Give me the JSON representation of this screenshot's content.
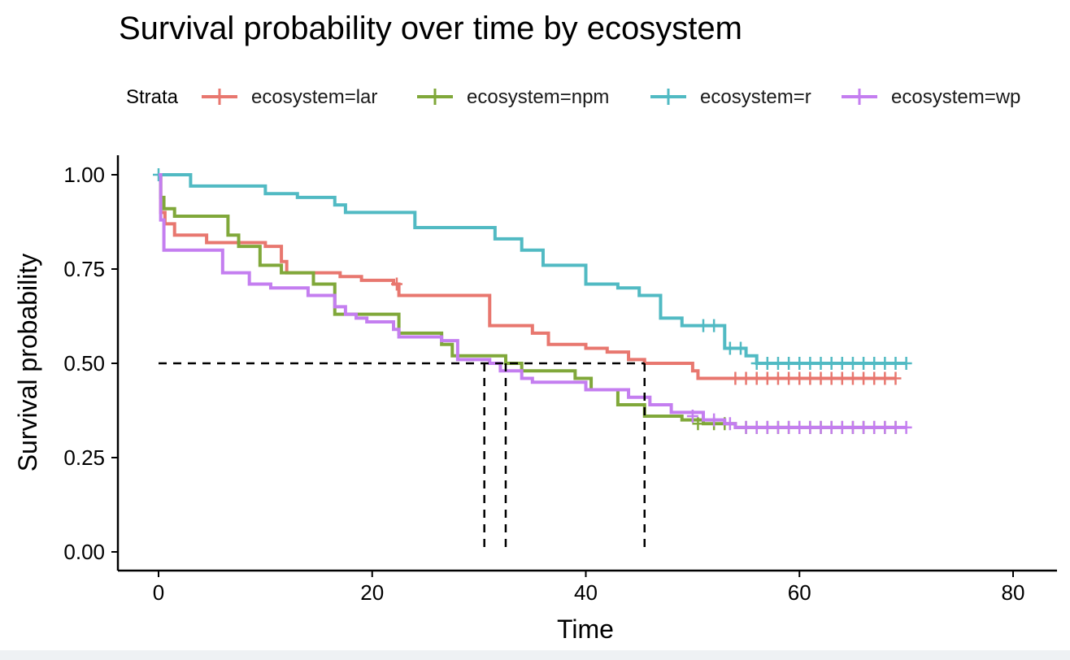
{
  "chart_data": {
    "type": "line",
    "subtype": "kaplan-meier step",
    "title": "Survival probability over time by ecosystem",
    "xlabel": "Time",
    "ylabel": "Survival probability",
    "xlim": [
      -2.5,
      83
    ],
    "ylim": [
      -0.045,
      1.045
    ],
    "xticks": [
      0,
      20,
      40,
      60,
      80
    ],
    "xtick_labels": [
      "0",
      "20",
      "40",
      "60",
      "80"
    ],
    "yticks": [
      0,
      0.25,
      0.5,
      0.75,
      1
    ],
    "ytick_labels": [
      "0.00",
      "0.25",
      "0.50",
      "0.75",
      "1.00"
    ],
    "grid": false,
    "legend": {
      "title": "Strata",
      "position": "top"
    },
    "series": [
      {
        "name": "ecosystem=lar",
        "color": "#e8776f",
        "points": [
          [
            0,
            1.0
          ],
          [
            0.2,
            0.9
          ],
          [
            0.6,
            0.87
          ],
          [
            1.5,
            0.84
          ],
          [
            4.5,
            0.82
          ],
          [
            10,
            0.81
          ],
          [
            11.5,
            0.77
          ],
          [
            12,
            0.74
          ],
          [
            17,
            0.73
          ],
          [
            19,
            0.72
          ],
          [
            22,
            0.71
          ],
          [
            22.5,
            0.68
          ],
          [
            31,
            0.68
          ],
          [
            31,
            0.6
          ],
          [
            35,
            0.58
          ],
          [
            36.5,
            0.55
          ],
          [
            40,
            0.54
          ],
          [
            42,
            0.53
          ],
          [
            44,
            0.51
          ],
          [
            45.5,
            0.51
          ],
          [
            45.5,
            0.5
          ],
          [
            50,
            0.48
          ],
          [
            50.5,
            0.46
          ],
          [
            69,
            0.46
          ]
        ],
        "censored": [
          [
            22.3,
            0.71
          ],
          [
            54,
            0.46
          ],
          [
            55,
            0.46
          ],
          [
            56,
            0.46
          ],
          [
            57,
            0.46
          ],
          [
            58,
            0.46
          ],
          [
            59,
            0.46
          ],
          [
            60,
            0.46
          ],
          [
            61,
            0.46
          ],
          [
            62,
            0.46
          ],
          [
            63,
            0.46
          ],
          [
            64,
            0.46
          ],
          [
            65,
            0.46
          ],
          [
            66,
            0.46
          ],
          [
            67,
            0.46
          ],
          [
            68,
            0.46
          ],
          [
            69,
            0.46
          ]
        ]
      },
      {
        "name": "ecosystem=npm",
        "color": "#80a83a",
        "points": [
          [
            0,
            1.0
          ],
          [
            0.2,
            0.94
          ],
          [
            0.5,
            0.91
          ],
          [
            1.5,
            0.89
          ],
          [
            6.5,
            0.84
          ],
          [
            7.5,
            0.81
          ],
          [
            9.5,
            0.76
          ],
          [
            11.5,
            0.74
          ],
          [
            14.5,
            0.71
          ],
          [
            16.5,
            0.63
          ],
          [
            22.5,
            0.58
          ],
          [
            26.5,
            0.55
          ],
          [
            27.5,
            0.52
          ],
          [
            32.5,
            0.5
          ],
          [
            34,
            0.48
          ],
          [
            39,
            0.46
          ],
          [
            40.5,
            0.43
          ],
          [
            43,
            0.39
          ],
          [
            45.5,
            0.36
          ],
          [
            49,
            0.35
          ],
          [
            51,
            0.34
          ],
          [
            54,
            0.33
          ],
          [
            69,
            0.33
          ]
        ],
        "censored": [
          [
            50.5,
            0.34
          ],
          [
            52,
            0.34
          ],
          [
            53,
            0.34
          ],
          [
            55,
            0.33
          ],
          [
            56,
            0.33
          ],
          [
            57,
            0.33
          ],
          [
            58,
            0.33
          ],
          [
            59,
            0.33
          ],
          [
            60,
            0.33
          ],
          [
            61,
            0.33
          ],
          [
            62,
            0.33
          ],
          [
            63,
            0.33
          ],
          [
            64,
            0.33
          ],
          [
            65,
            0.33
          ],
          [
            66,
            0.33
          ],
          [
            67,
            0.33
          ],
          [
            68,
            0.33
          ],
          [
            69,
            0.33
          ]
        ]
      },
      {
        "name": "ecosystem=r",
        "color": "#51bac3",
        "points": [
          [
            0,
            1.0
          ],
          [
            3,
            0.97
          ],
          [
            10,
            0.95
          ],
          [
            13,
            0.94
          ],
          [
            16.5,
            0.92
          ],
          [
            17.5,
            0.9
          ],
          [
            24,
            0.86
          ],
          [
            31.5,
            0.83
          ],
          [
            34,
            0.8
          ],
          [
            36,
            0.76
          ],
          [
            40,
            0.71
          ],
          [
            43,
            0.7
          ],
          [
            45,
            0.68
          ],
          [
            47,
            0.62
          ],
          [
            49,
            0.6
          ],
          [
            53,
            0.54
          ],
          [
            55,
            0.52
          ],
          [
            56,
            0.5
          ],
          [
            70,
            0.5
          ]
        ],
        "censored": [
          [
            0,
            1.0
          ],
          [
            51,
            0.6
          ],
          [
            52,
            0.6
          ],
          [
            53.5,
            0.54
          ],
          [
            54.5,
            0.54
          ],
          [
            56,
            0.5
          ],
          [
            57,
            0.5
          ],
          [
            58,
            0.5
          ],
          [
            59,
            0.5
          ],
          [
            60,
            0.5
          ],
          [
            61,
            0.5
          ],
          [
            62,
            0.5
          ],
          [
            63,
            0.5
          ],
          [
            64,
            0.5
          ],
          [
            65,
            0.5
          ],
          [
            66,
            0.5
          ],
          [
            67,
            0.5
          ],
          [
            68,
            0.5
          ],
          [
            69,
            0.5
          ],
          [
            70,
            0.5
          ]
        ]
      },
      {
        "name": "ecosystem=wp",
        "color": "#c47ef0",
        "points": [
          [
            0,
            1.0
          ],
          [
            0.2,
            0.88
          ],
          [
            0.5,
            0.8
          ],
          [
            6,
            0.74
          ],
          [
            8.5,
            0.71
          ],
          [
            10.5,
            0.7
          ],
          [
            14,
            0.68
          ],
          [
            16.5,
            0.65
          ],
          [
            17.5,
            0.63
          ],
          [
            18.5,
            0.62
          ],
          [
            19.5,
            0.61
          ],
          [
            22,
            0.59
          ],
          [
            22.5,
            0.57
          ],
          [
            26.5,
            0.56
          ],
          [
            28,
            0.51
          ],
          [
            31,
            0.5
          ],
          [
            32,
            0.48
          ],
          [
            34,
            0.46
          ],
          [
            35,
            0.45
          ],
          [
            40,
            0.43
          ],
          [
            44,
            0.41
          ],
          [
            46,
            0.39
          ],
          [
            48,
            0.37
          ],
          [
            51,
            0.35
          ],
          [
            53,
            0.34
          ],
          [
            54,
            0.33
          ],
          [
            70,
            0.33
          ]
        ],
        "censored": [
          [
            50,
            0.36
          ],
          [
            52,
            0.35
          ],
          [
            53.5,
            0.34
          ],
          [
            55,
            0.33
          ],
          [
            56,
            0.33
          ],
          [
            57,
            0.33
          ],
          [
            58,
            0.33
          ],
          [
            59,
            0.33
          ],
          [
            60,
            0.33
          ],
          [
            61,
            0.33
          ],
          [
            62,
            0.33
          ],
          [
            63,
            0.33
          ],
          [
            64,
            0.33
          ],
          [
            65,
            0.33
          ],
          [
            66,
            0.33
          ],
          [
            67,
            0.33
          ],
          [
            68,
            0.33
          ],
          [
            69,
            0.33
          ],
          [
            70,
            0.33
          ]
        ]
      }
    ],
    "median_lines": {
      "y": 0.5,
      "x_end": 45.5,
      "verticals": [
        30.5,
        32.5,
        45.5
      ],
      "color": "#000000",
      "style": "dashed"
    }
  }
}
